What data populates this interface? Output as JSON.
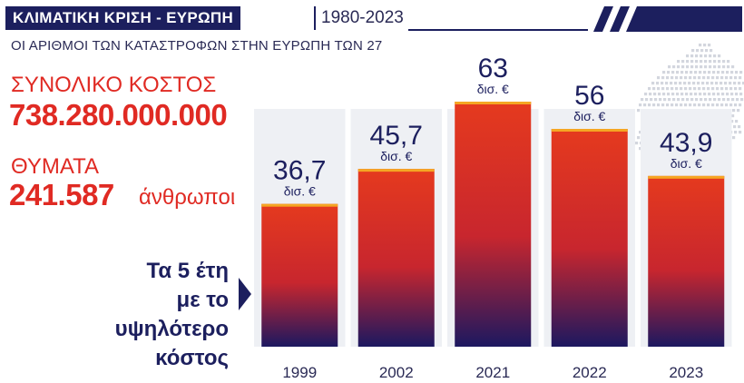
{
  "header": {
    "title": "ΚΛΙΜΑΤΙΚΗ ΚΡΙΣΗ - ΕΥΡΩΠΗ",
    "years": "1980-2023",
    "subtitle": "ΟΙ ΑΡΙΘΜΟΙ ΤΩΝ ΚΑΤΑΣΤΡΟΦΩΝ ΣΤΗΝ ΕΥΡΩΠΗ ΤΩΝ 27"
  },
  "stats": {
    "cost_label": "ΣΥΝΟΛΙΚΟ ΚΟΣΤΟΣ",
    "cost_value": "738.280.000.000",
    "cost_unit": "€",
    "victims_label": "ΘΥΜΑΤΑ",
    "victims_value": "241.587",
    "victims_unit": "άνθρωποι"
  },
  "note": {
    "line1": "Τα 5 έτη",
    "line2": "με το υψηλότερο",
    "line3": "κόστος"
  },
  "colors": {
    "navy": "#1c1f5e",
    "red": "#e02a23",
    "bar_top": "#e53a1e",
    "bar_bottom": "#1c1860",
    "bar_cap": "#f5a623",
    "panel": "#eef0f4",
    "map": "#d3d6de"
  },
  "chart_data": {
    "type": "bar",
    "title": "",
    "xlabel": "",
    "ylabel": "",
    "categories": [
      "1999",
      "2002",
      "2021",
      "2022",
      "2023"
    ],
    "values": [
      36.7,
      45.7,
      63,
      56,
      43.9
    ],
    "value_labels": [
      "36,7",
      "45,7",
      "63",
      "56",
      "43,9"
    ],
    "unit_label": "δισ. €",
    "ylim": [
      0,
      70
    ],
    "grid": false,
    "legend": "none"
  }
}
